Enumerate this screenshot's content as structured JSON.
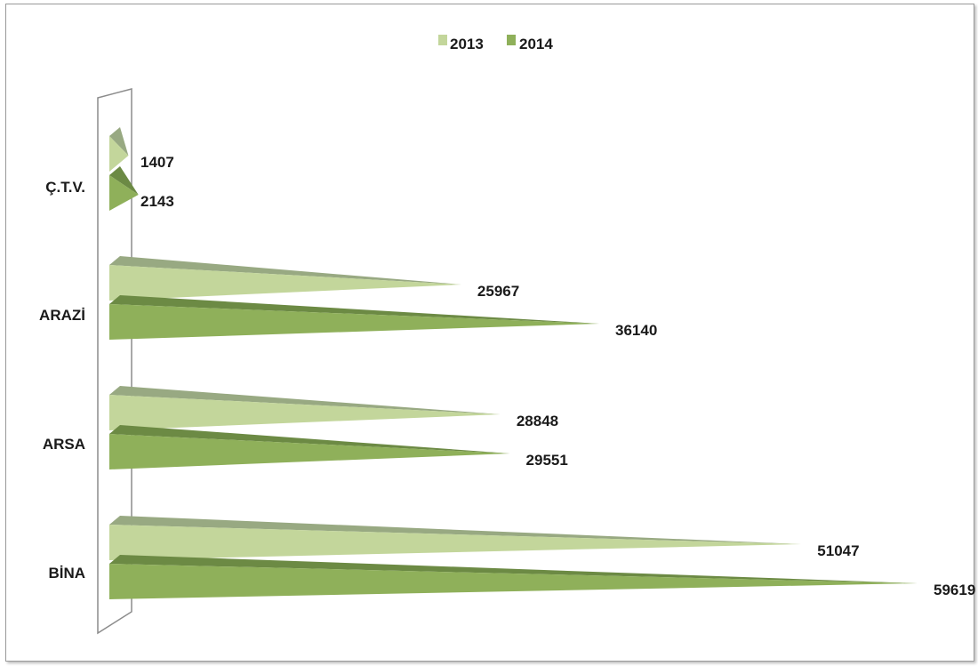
{
  "colors": {
    "series_2013_face": "#c3d69b",
    "series_2013_top": "#98a982",
    "series_2014_face": "#8fb05a",
    "series_2014_top": "#6c8a44",
    "wall": "#8c8c8c"
  },
  "chart_data": {
    "type": "bar",
    "orientation": "horizontal",
    "style": "3d-cone",
    "categories": [
      "BİNA",
      "ARSA",
      "ARAZİ",
      "Ç.T.V."
    ],
    "series": [
      {
        "name": "2013",
        "values": [
          51047,
          28848,
          25967,
          1407
        ]
      },
      {
        "name": "2014",
        "values": [
          59619,
          29551,
          36140,
          2143
        ]
      }
    ],
    "data_labels": {
      "2013": [
        "51047",
        "28848",
        "25967",
        "1407"
      ],
      "2014": [
        "59619",
        "29551",
        "36140",
        "2143"
      ]
    },
    "xlim": [
      0,
      65000
    ],
    "legend_position": "top-center",
    "grid": false,
    "title": "",
    "xlabel": "",
    "ylabel": ""
  }
}
